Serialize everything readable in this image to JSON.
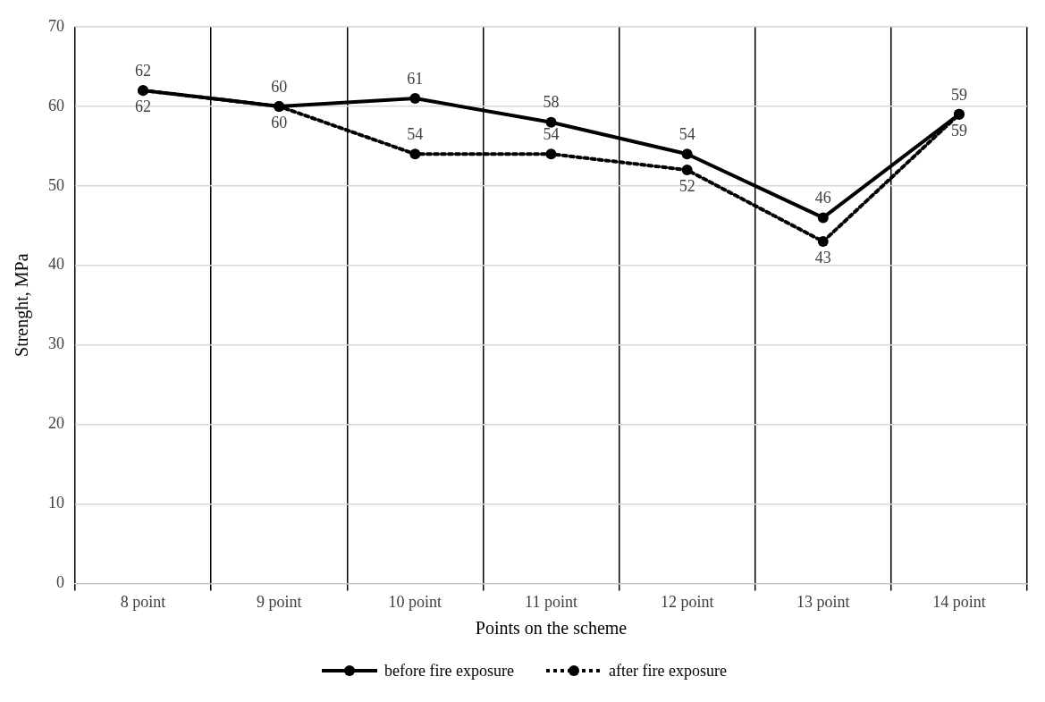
{
  "chart_data": {
    "type": "line",
    "xlabel": "Points on the scheme",
    "ylabel": "Strenght, MPa",
    "categories": [
      "8 point",
      "9 point",
      "10 point",
      "11 point",
      "12 point",
      "13 point",
      "14 point"
    ],
    "series": [
      {
        "name": "before fire exposure",
        "color": "#000000",
        "line_style": "solid",
        "values": [
          62,
          60,
          61,
          58,
          54,
          46,
          59
        ]
      },
      {
        "name": "after fire exposure",
        "color": "#000000",
        "line_style": "dotted",
        "values": [
          62,
          60,
          54,
          54,
          52,
          43,
          59
        ]
      }
    ],
    "ylim": [
      0,
      70
    ],
    "yticks": [
      0,
      10,
      20,
      30,
      40,
      50,
      60,
      70
    ],
    "grid": true,
    "legend": "bottom",
    "marker": "circle",
    "data_labels": true
  }
}
